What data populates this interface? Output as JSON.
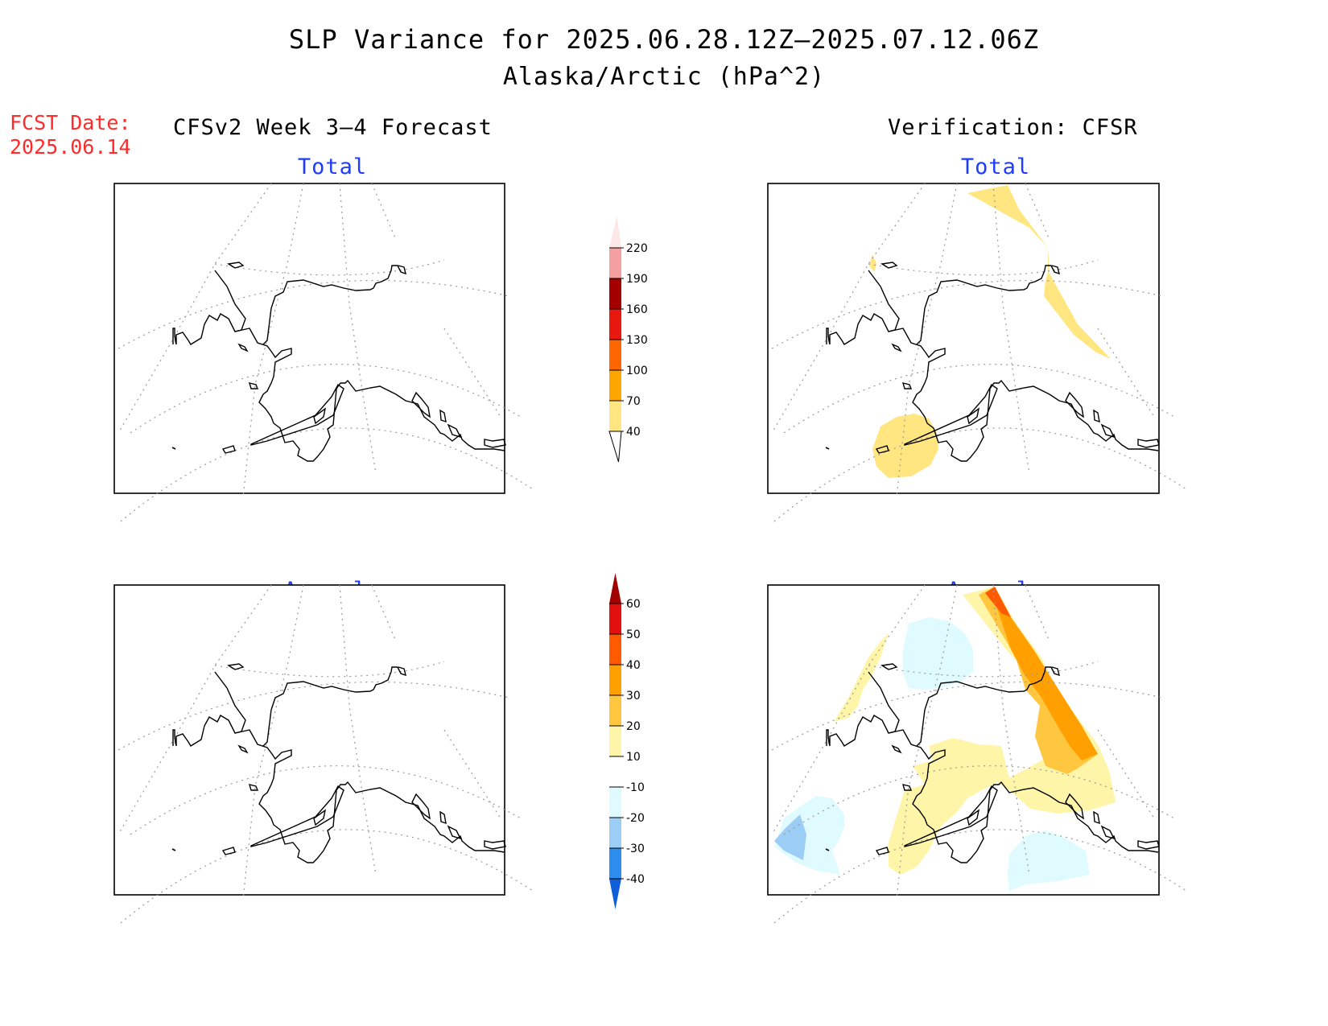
{
  "title": "SLP Variance for 2025.06.28.12Z—2025.07.12.06Z",
  "subtitle": "Alaska/Arctic (hPa^2)",
  "forecast_date": {
    "label": "FCST Date:",
    "value": "2025.06.14"
  },
  "left_column_header": "CFSv2 Week 3—4 Forecast",
  "right_column_header": "Verification: CFSR",
  "panels": {
    "forecast_total": "Total",
    "verification_total": "Total",
    "forecast_anomaly": "Anomaly",
    "verification_anomaly": "Anomaly"
  },
  "colorbars": {
    "total": {
      "labels": [
        "40",
        "70",
        "100",
        "130",
        "160",
        "190",
        "220"
      ],
      "colors": [
        "#ffe680",
        "#ffa500",
        "#ff6600",
        "#e8180e",
        "#a50000",
        "#f4a0a0",
        "#fde8e8"
      ]
    },
    "anomaly": {
      "labels": [
        "-40",
        "-30",
        "-20",
        "-10",
        "10",
        "20",
        "30",
        "40",
        "50",
        "60"
      ],
      "colors": [
        "#0f5fd8",
        "#2e8ef0",
        "#9ccdf5",
        "#e0fbff",
        "#ffffff",
        "#fff5a8",
        "#ffc640",
        "#ffa000",
        "#ff5a00",
        "#e31010",
        "#a00000"
      ]
    }
  }
}
